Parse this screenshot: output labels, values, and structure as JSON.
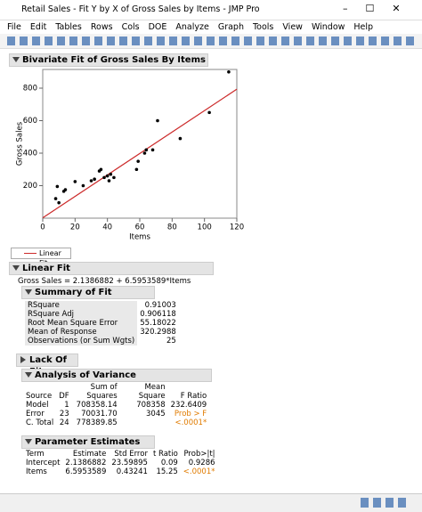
{
  "window": {
    "title": "Retail Sales - Fit Y by X of Gross Sales by Items - JMP Pro",
    "menu": [
      "File",
      "Edit",
      "Tables",
      "Rows",
      "Cols",
      "DOE",
      "Analyze",
      "Graph",
      "Tools",
      "View",
      "Window",
      "Help"
    ]
  },
  "report_title": "Bivariate Fit of Gross Sales By Items",
  "chart_data": {
    "type": "scatter",
    "x_label": "Items",
    "y_label": "Gross Sales",
    "x": [
      8,
      9,
      10,
      13,
      14,
      20,
      25,
      30,
      32,
      35,
      36,
      38,
      40,
      41,
      42,
      44,
      58,
      59,
      63,
      64,
      68,
      71,
      85,
      103,
      115
    ],
    "y": [
      120,
      195,
      95,
      165,
      175,
      225,
      200,
      230,
      240,
      290,
      300,
      250,
      260,
      230,
      270,
      250,
      300,
      350,
      400,
      420,
      420,
      600,
      490,
      650,
      900
    ],
    "color": "#000000",
    "xlim": [
      0,
      120
    ],
    "ylim": [
      0,
      915
    ],
    "xticks": [
      0,
      20,
      40,
      60,
      80,
      100,
      120
    ],
    "yticks": [
      200,
      400,
      600,
      800
    ],
    "fit": {
      "intercept": 2.1386882,
      "slope": 6.5953589,
      "color": "#cc2a2a"
    },
    "legend": "Linear Fit"
  },
  "linear_fit": {
    "title": "Linear Fit",
    "equation": "Gross Sales = 2.1386882 + 6.5953589*Items"
  },
  "summary_of_fit": {
    "title": "Summary of Fit",
    "rows": [
      [
        "RSquare",
        "0.91003"
      ],
      [
        "RSquare Adj",
        "0.906118"
      ],
      [
        "Root Mean Square Error",
        "55.18022"
      ],
      [
        "Mean of Response",
        "320.2988"
      ],
      [
        "Observations (or Sum Wgts)",
        "25"
      ]
    ]
  },
  "lack_of_fit": {
    "title": "Lack Of Fit"
  },
  "anova": {
    "title": "Analysis of Variance",
    "headers": [
      "Source",
      "DF",
      "Sum of Squares",
      "Mean Square",
      "F Ratio"
    ],
    "rows": [
      [
        "Model",
        "1",
        "708358.14",
        "708358",
        "232.6409"
      ],
      [
        "Error",
        "23",
        "70031.70",
        "3045",
        "Prob > F"
      ],
      [
        "C. Total",
        "24",
        "778389.85",
        null,
        "<.0001*"
      ]
    ]
  },
  "parameter_estimates": {
    "title": "Parameter Estimates",
    "headers": [
      "Term",
      "Estimate",
      "Std Error",
      "t Ratio",
      "Prob>|t|"
    ],
    "rows": [
      [
        "Intercept",
        "2.1386882",
        "23.59895",
        "0.09",
        "0.9286"
      ],
      [
        "Items",
        "6.5953589",
        "0.43241",
        "15.25",
        "<.0001*"
      ]
    ]
  }
}
